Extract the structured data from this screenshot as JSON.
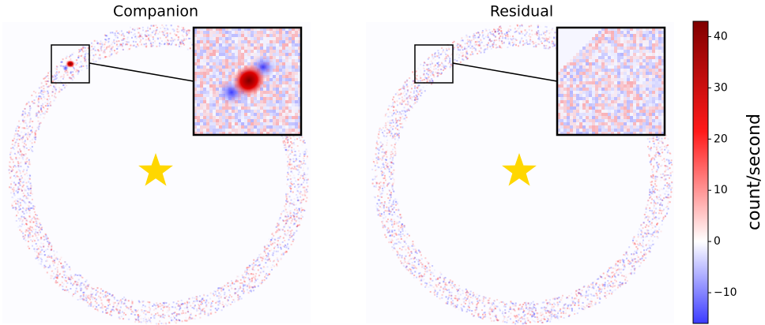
{
  "chart_data": [
    {
      "type": "image",
      "title": "Companion"
    },
    {
      "type": "image",
      "title": "Residual"
    }
  ],
  "colorbar": {
    "label": "count/second",
    "lim": [
      -16,
      43
    ],
    "ticks": [
      {
        "value": -10,
        "label": "−10"
      },
      0,
      10,
      20,
      30,
      40
    ],
    "colors": [
      "#3b3bff",
      "#ffffff",
      "#ff1a1a",
      "#800000"
    ]
  }
}
